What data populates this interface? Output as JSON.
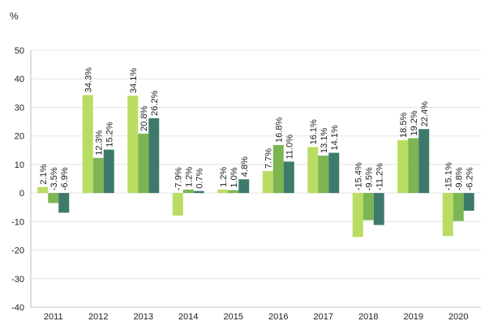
{
  "chart_data": {
    "type": "bar",
    "unit_label": "%",
    "categories": [
      "2011",
      "2012",
      "2013",
      "2014",
      "2015",
      "2016",
      "2017",
      "2018",
      "2019",
      "2020"
    ],
    "series": [
      {
        "values": [
          2.1,
          34.3,
          34.1,
          -7.9,
          1.2,
          7.7,
          16.1,
          -15.4,
          18.5,
          -15.1
        ],
        "labels": [
          "2.1%",
          "34.3%",
          "34.1%",
          "-7.9%",
          "1.2%",
          "7.7%",
          "16.1%",
          "-15.4%",
          "18.5%",
          "-15.1%"
        ],
        "color": "#b9dd63"
      },
      {
        "values": [
          -3.5,
          12.3,
          20.8,
          1.2,
          1.0,
          16.8,
          13.1,
          -9.5,
          19.2,
          -9.8
        ],
        "labels": [
          "-3.5%",
          "12.3%",
          "20.8%",
          "1.2%",
          "1.0%",
          "16.8%",
          "13.1%",
          "-9.5%",
          "19.2%",
          "-9.8%"
        ],
        "color": "#7cb552"
      },
      {
        "values": [
          -6.9,
          15.2,
          26.2,
          0.7,
          4.8,
          11.0,
          14.1,
          -11.2,
          22.4,
          -6.2
        ],
        "labels": [
          "-6.9%",
          "15.2%",
          "26.2%",
          "0.7%",
          "4.8%",
          "11.0%",
          "14.1%",
          "-11.2%",
          "22.4%",
          "-6.2%"
        ],
        "color": "#3e7a6b"
      }
    ],
    "ylim": [
      -40,
      50
    ],
    "yticks": [
      -40,
      -30,
      -20,
      -10,
      0,
      10,
      20,
      30,
      40,
      50
    ],
    "grid": true,
    "legend": "none"
  }
}
